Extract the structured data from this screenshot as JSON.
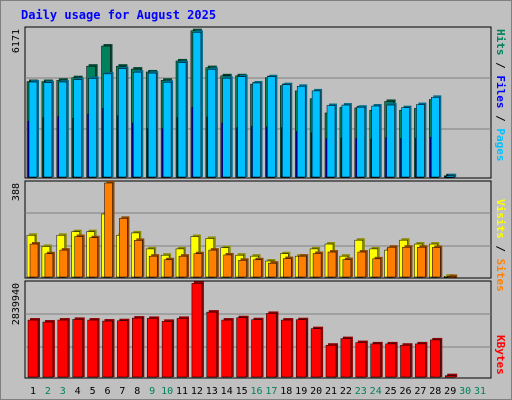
{
  "title": "Daily usage for August 2025",
  "colors": {
    "hits": "#00805c",
    "files": "#0000ff",
    "pages": "#00c0ff",
    "visits": "#ffff00",
    "sites": "#ff8000",
    "kbytes": "#ff0000",
    "weekend_label": "#00805c",
    "weekday_label": "#000000"
  },
  "chart_data": [
    {
      "type": "bar",
      "title": "Daily usage for August 2025",
      "categories": [
        "1",
        "2",
        "3",
        "4",
        "5",
        "6",
        "7",
        "8",
        "9",
        "10",
        "11",
        "12",
        "13",
        "14",
        "15",
        "16",
        "17",
        "18",
        "19",
        "20",
        "21",
        "22",
        "23",
        "24",
        "25",
        "26",
        "27",
        "28",
        "29",
        "30",
        "31"
      ],
      "weekend_days": [
        "2",
        "3",
        "9",
        "10",
        "16",
        "17",
        "23",
        "24",
        "30",
        "31"
      ],
      "ymax_label": "6171",
      "ylim": [
        0,
        6171
      ],
      "grid": true,
      "series": [
        {
          "name": "Hits",
          "values": [
            3980,
            3980,
            4030,
            4140,
            4620,
            5460,
            4620,
            4500,
            4380,
            4030,
            4840,
            6100,
            4560,
            4220,
            4220,
            3870,
            4140,
            3810,
            3590,
            3260,
            2670,
            2900,
            2880,
            2780,
            3150,
            2780,
            2860,
            3230,
            50,
            0,
            0
          ]
        },
        {
          "name": "Files",
          "values": [
            2330,
            2480,
            2520,
            2450,
            2620,
            2860,
            2550,
            2250,
            2020,
            2020,
            2480,
            2900,
            2500,
            2250,
            2060,
            2110,
            2090,
            2060,
            1900,
            1840,
            1600,
            1630,
            1600,
            1580,
            1640,
            1610,
            1620,
            1660,
            30,
            0,
            0
          ]
        },
        {
          "name": "Pages",
          "values": [
            3960,
            3930,
            3960,
            4060,
            4110,
            4300,
            4520,
            4370,
            4330,
            3950,
            4770,
            6030,
            4490,
            4120,
            4180,
            3920,
            4180,
            3850,
            3780,
            3590,
            2980,
            3000,
            2910,
            2960,
            3000,
            2890,
            3020,
            3320,
            50,
            0,
            0
          ]
        }
      ],
      "legend": [
        "Pages",
        "Files",
        "Hits"
      ]
    },
    {
      "type": "bar",
      "categories": [
        "1",
        "2",
        "3",
        "4",
        "5",
        "6",
        "7",
        "8",
        "9",
        "10",
        "11",
        "12",
        "13",
        "14",
        "15",
        "16",
        "17",
        "18",
        "19",
        "20",
        "21",
        "22",
        "23",
        "24",
        "25",
        "26",
        "27",
        "28",
        "29",
        "30",
        "31"
      ],
      "ymax_label": "388",
      "ylim": [
        0,
        388
      ],
      "grid": true,
      "series": [
        {
          "name": "Visits",
          "values": [
            172,
            126,
            172,
            187,
            187,
            260,
            172,
            182,
            116,
            90,
            116,
            167,
            159,
            121,
            90,
            86,
            66,
            96,
            86,
            116,
            136,
            86,
            152,
            116,
            111,
            152,
            136,
            136,
            3,
            0,
            0
          ]
        },
        {
          "name": "Sites",
          "values": [
            136,
            96,
            111,
            167,
            162,
            388,
            242,
            151,
            86,
            71,
            86,
            96,
            111,
            91,
            69,
            71,
            57,
            76,
            86,
            97,
            103,
            72,
            103,
            75,
            123,
            123,
            123,
            122,
            2,
            0,
            0
          ]
        }
      ],
      "legend": [
        "Sites",
        "Visits"
      ]
    },
    {
      "type": "bar",
      "categories": [
        "1",
        "2",
        "3",
        "4",
        "5",
        "6",
        "7",
        "8",
        "9",
        "10",
        "11",
        "12",
        "13",
        "14",
        "15",
        "16",
        "17",
        "18",
        "19",
        "20",
        "21",
        "22",
        "23",
        "24",
        "25",
        "26",
        "27",
        "28",
        "29",
        "30",
        "31"
      ],
      "ymax_label": "2839940",
      "ylim": [
        0,
        2839940
      ],
      "grid": true,
      "series": [
        {
          "name": "KBytes",
          "values": [
            1720000,
            1660000,
            1720000,
            1740000,
            1720000,
            1690000,
            1700000,
            1780000,
            1770000,
            1680000,
            1770000,
            2830000,
            1960000,
            1720000,
            1790000,
            1730000,
            1920000,
            1720000,
            1730000,
            1460000,
            960000,
            1160000,
            1040000,
            1000000,
            1000000,
            960000,
            1000000,
            1120000,
            40000,
            0,
            0
          ]
        }
      ],
      "legend": [
        "KBytes"
      ]
    }
  ]
}
